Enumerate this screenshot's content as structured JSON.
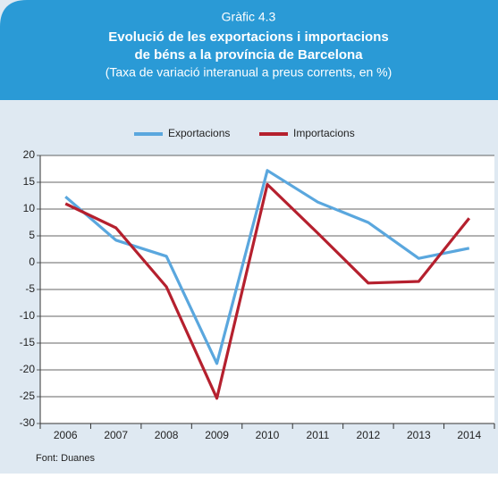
{
  "chart_data": {
    "type": "line",
    "supertitle": "Gràfic 4.3",
    "title": [
      "Evolució de les exportacions i importacions",
      "de béns  a la província de Barcelona"
    ],
    "subtitle": "(Taxa de variació interanual a preus corrents, en %)",
    "categories": [
      "2006",
      "2007",
      "2008",
      "2009",
      "2010",
      "2011",
      "2012",
      "2013",
      "2014"
    ],
    "series": [
      {
        "name": "Exportacions",
        "color": "#5aa7de",
        "values": [
          12.3,
          4.2,
          1.2,
          -18.8,
          17.2,
          11.3,
          7.5,
          0.8,
          2.7
        ]
      },
      {
        "name": "Importacions",
        "color": "#b5202e",
        "values": [
          11,
          6.5,
          -4.5,
          -25.3,
          14.6,
          5.5,
          -3.8,
          -3.5,
          8.3
        ]
      }
    ],
    "ylim": [
      -30,
      20
    ],
    "yticks": [
      -30,
      -25,
      -20,
      -15,
      -10,
      -5,
      0,
      5,
      10,
      15,
      20
    ],
    "grid": true,
    "legend": "top",
    "source": "Font: Duanes"
  }
}
